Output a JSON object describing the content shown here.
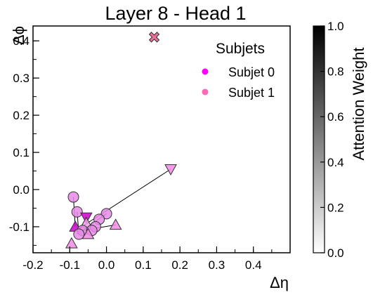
{
  "chart_data": {
    "type": "scatter",
    "title": "Layer 8 - Head 1",
    "xlabel": "Δη",
    "ylabel": "Δϕ",
    "xlim": [
      -0.2,
      0.5
    ],
    "ylim": [
      -0.17,
      0.44
    ],
    "xticks": [
      "-0.2",
      "-0.1",
      "0.0",
      "0.1",
      "0.2",
      "0.3",
      "0.4"
    ],
    "yticks": [
      "-0.1",
      "0.0",
      "0.1",
      "0.2",
      "0.3",
      "0.4"
    ],
    "grid": false,
    "legend": {
      "title": "Subjets",
      "placement": "top-right",
      "entries": [
        {
          "label": "Subjet 0",
          "color": "#ff00ff"
        },
        {
          "label": "Subjet 1",
          "color": "#ff69b4"
        }
      ]
    },
    "colorbar": {
      "label": "Attention Weight",
      "range": [
        0.0,
        1.0
      ],
      "ticks": [
        "0.0",
        "0.2",
        "0.4",
        "0.6",
        "0.8",
        "1.0"
      ]
    },
    "points": [
      {
        "x": 0.13,
        "y": 0.41,
        "marker": "x",
        "color": "#e8709a"
      },
      {
        "x": 0.175,
        "y": 0.055,
        "marker": "triangle-down",
        "color": "#f28ae6"
      },
      {
        "x": -0.09,
        "y": -0.02,
        "marker": "circle",
        "color": "#e68ae6"
      },
      {
        "x": -0.08,
        "y": -0.06,
        "marker": "circle",
        "color": "#e68ae6"
      },
      {
        "x": -0.055,
        "y": -0.075,
        "marker": "triangle-down",
        "color": "#cc00cc"
      },
      {
        "x": -0.055,
        "y": -0.09,
        "marker": "triangle-up",
        "color": "#f2a0e8"
      },
      {
        "x": 0.0,
        "y": -0.065,
        "marker": "circle",
        "color": "#e68ae6"
      },
      {
        "x": -0.02,
        "y": -0.08,
        "marker": "circle",
        "color": "#e68ae6"
      },
      {
        "x": 0.025,
        "y": -0.095,
        "marker": "triangle-up",
        "color": "#f28ae6"
      },
      {
        "x": -0.03,
        "y": -0.1,
        "marker": "circle",
        "color": "#e68ae6"
      },
      {
        "x": -0.085,
        "y": -0.1,
        "marker": "triangle-up",
        "color": "#cc00cc"
      },
      {
        "x": -0.065,
        "y": -0.11,
        "marker": "circle",
        "color": "#e68ae6"
      },
      {
        "x": -0.04,
        "y": -0.11,
        "marker": "circle",
        "color": "#e68ae6"
      },
      {
        "x": -0.075,
        "y": -0.12,
        "marker": "circle",
        "color": "#e68ae6"
      },
      {
        "x": -0.05,
        "y": -0.12,
        "marker": "triangle-up",
        "color": "#f28ae6"
      },
      {
        "x": -0.095,
        "y": -0.145,
        "marker": "triangle-up",
        "color": "#f28ae6"
      }
    ],
    "links": [
      {
        "from": [
          -0.075,
          -0.105
        ],
        "to": [
          0.175,
          0.055
        ]
      },
      {
        "from": [
          -0.09,
          -0.02
        ],
        "to": [
          -0.085,
          -0.1
        ]
      },
      {
        "from": [
          -0.055,
          -0.075
        ],
        "to": [
          -0.08,
          -0.12
        ]
      },
      {
        "from": [
          -0.065,
          -0.11
        ],
        "to": [
          0.025,
          -0.095
        ]
      },
      {
        "from": [
          -0.065,
          -0.11
        ],
        "to": [
          0.0,
          -0.065
        ]
      },
      {
        "from": [
          -0.08,
          -0.06
        ],
        "to": [
          -0.075,
          -0.12
        ]
      }
    ]
  }
}
